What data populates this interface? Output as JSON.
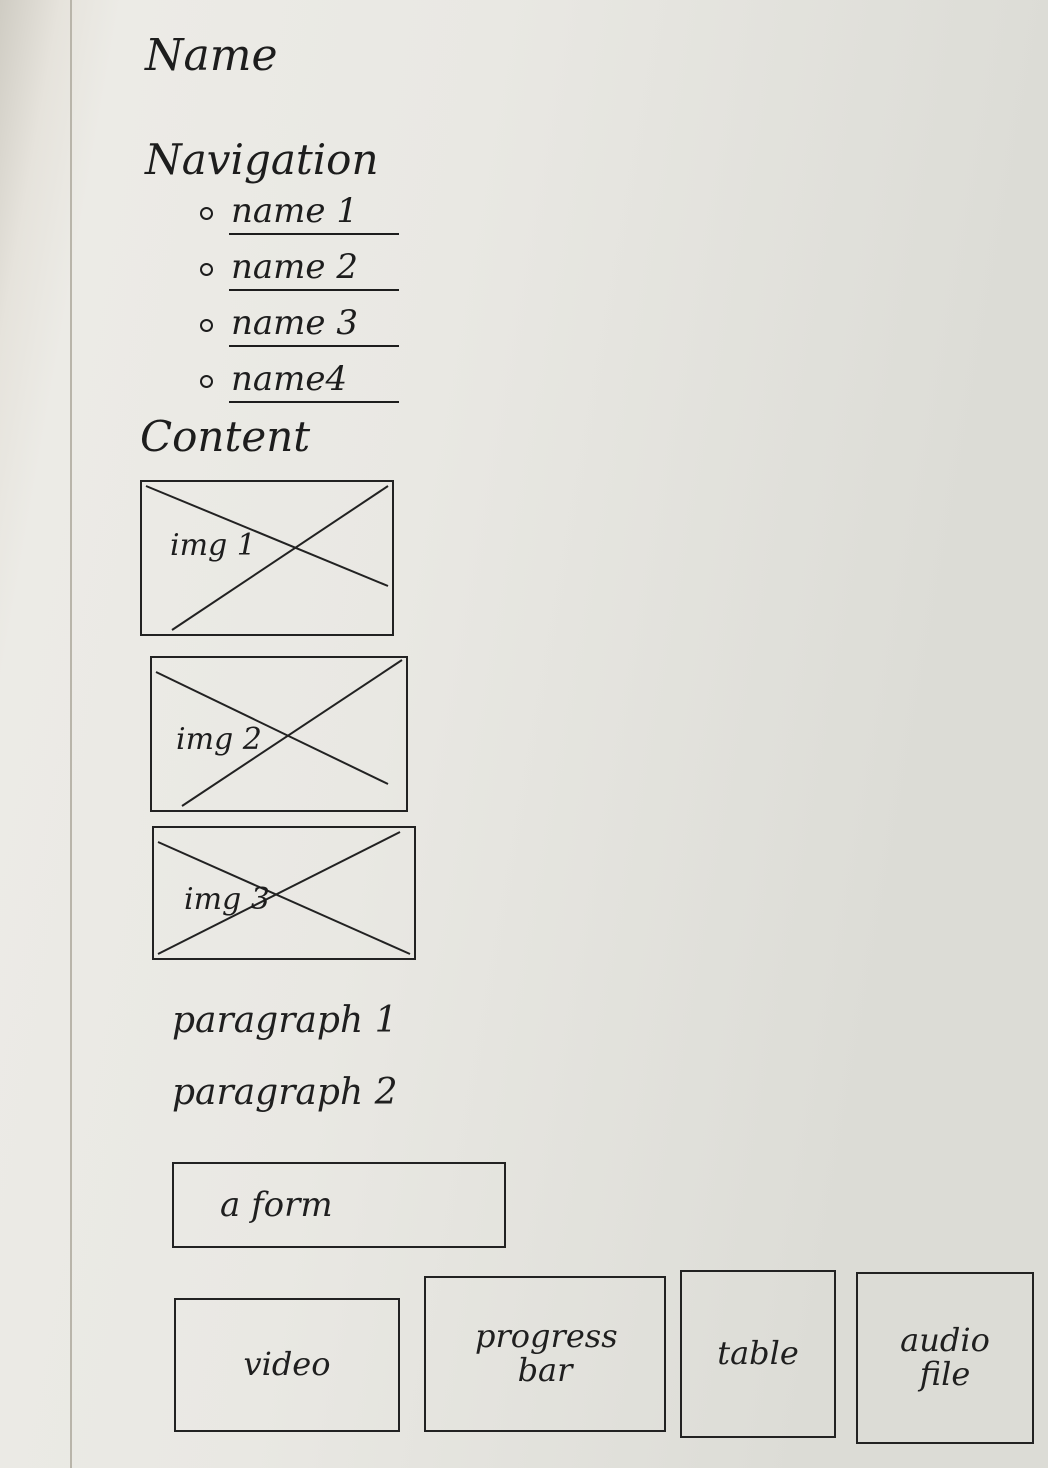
{
  "page": {
    "title": "Name",
    "navigation": {
      "heading": "Navigation",
      "items": [
        "name 1",
        "name 2",
        "name 3",
        "name4"
      ]
    },
    "content": {
      "heading": "Content",
      "images": [
        "img 1",
        "img 2",
        "img 3"
      ],
      "paragraphs": [
        "paragraph 1",
        "paragraph 2"
      ],
      "form_label": "a form"
    },
    "widgets": [
      "video",
      "progress bar",
      "table",
      "audio file"
    ]
  }
}
